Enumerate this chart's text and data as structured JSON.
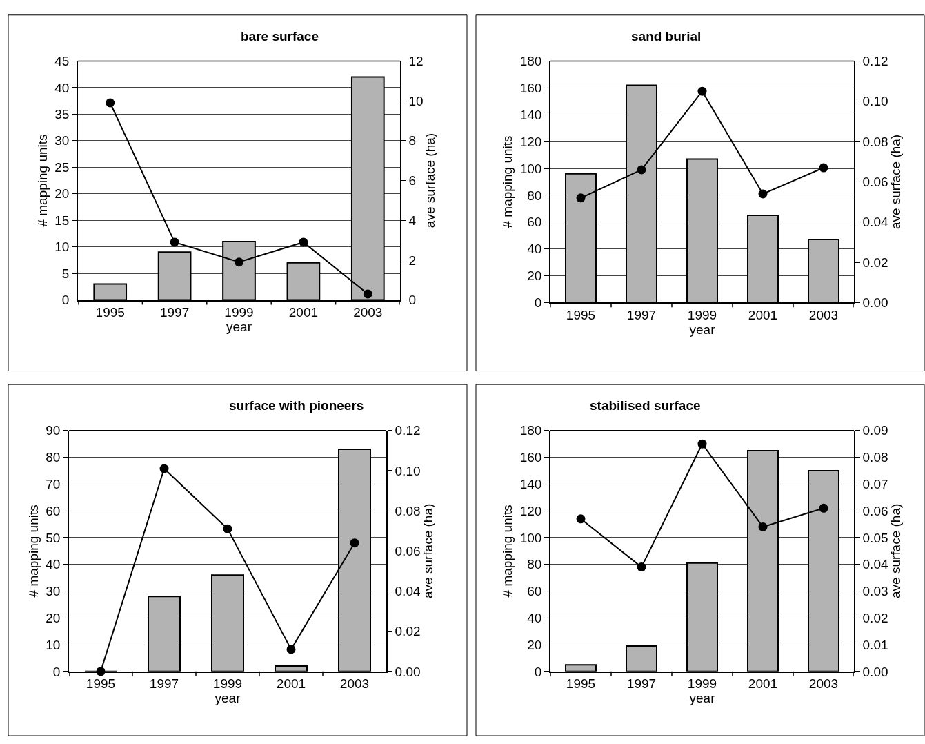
{
  "chart_data": [
    {
      "type": "bar",
      "title": "bare surface",
      "xlabel": "year",
      "ylabel": "# mapping units",
      "y2label": "ave surface (ha)",
      "categories": [
        "1995",
        "1997",
        "1999",
        "2001",
        "2003"
      ],
      "ylim": [
        0,
        45
      ],
      "yticks": [
        0,
        5,
        10,
        15,
        20,
        25,
        30,
        35,
        40,
        45
      ],
      "y2lim": [
        0,
        12
      ],
      "y2ticks": [
        0,
        2,
        4,
        6,
        8,
        10,
        12
      ],
      "grid": "y",
      "marker": "circle",
      "line_style": "solid",
      "series": [
        {
          "color": "#b3b3b3",
          "values": [
            3,
            9,
            11,
            7,
            42
          ]
        },
        {
          "type": "line",
          "axis": "y2",
          "color": "#000000",
          "values": [
            9.9,
            2.9,
            1.9,
            2.9,
            0.3
          ]
        }
      ]
    },
    {
      "type": "bar",
      "title": "sand burial",
      "xlabel": "year",
      "ylabel": "# mapping units",
      "y2label": "ave surface (ha)",
      "categories": [
        "1995",
        "1997",
        "1999",
        "2001",
        "2003"
      ],
      "ylim": [
        0,
        180
      ],
      "yticks": [
        0,
        20,
        40,
        60,
        80,
        100,
        120,
        140,
        160,
        180
      ],
      "y2lim": [
        0,
        0.12
      ],
      "y2ticks": [
        {
          "value": 0,
          "label": "0.00"
        },
        {
          "value": 0.02,
          "label": "0.02"
        },
        {
          "value": 0.04,
          "label": "0.04"
        },
        {
          "value": 0.06,
          "label": "0.06"
        },
        {
          "value": 0.08,
          "label": "0.08"
        },
        {
          "value": 0.1,
          "label": "0.10"
        },
        {
          "value": 0.12,
          "label": "0.12"
        }
      ],
      "grid": "y",
      "marker": "circle",
      "line_style": "solid",
      "series": [
        {
          "color": "#b3b3b3",
          "values": [
            96,
            162,
            107,
            65,
            47
          ]
        },
        {
          "type": "line",
          "axis": "y2",
          "color": "#000000",
          "values": [
            0.052,
            0.066,
            0.105,
            0.054,
            0.067
          ]
        }
      ]
    },
    {
      "type": "bar",
      "title": "surface with pioneers",
      "xlabel": "year",
      "ylabel": "# mapping units",
      "y2label": "ave surface (ha)",
      "categories": [
        "1995",
        "1997",
        "1999",
        "2001",
        "2003"
      ],
      "ylim": [
        0,
        90
      ],
      "yticks": [
        0,
        10,
        20,
        30,
        40,
        50,
        60,
        70,
        80,
        90
      ],
      "y2lim": [
        0,
        0.12
      ],
      "y2ticks": [
        {
          "value": 0,
          "label": "0.00"
        },
        {
          "value": 0.02,
          "label": "0.02"
        },
        {
          "value": 0.04,
          "label": "0.04"
        },
        {
          "value": 0.06,
          "label": "0.06"
        },
        {
          "value": 0.08,
          "label": "0.08"
        },
        {
          "value": 0.1,
          "label": "0.10"
        },
        {
          "value": 0.12,
          "label": "0.12"
        }
      ],
      "grid": "y",
      "marker": "circle",
      "line_style": "solid",
      "series": [
        {
          "color": "#b3b3b3",
          "values": [
            0,
            28,
            36,
            2,
            83
          ]
        },
        {
          "type": "line",
          "axis": "y2",
          "color": "#000000",
          "values": [
            0,
            0.101,
            0.071,
            0.011,
            0.064
          ]
        }
      ]
    },
    {
      "type": "bar",
      "title": "stabilised surface",
      "xlabel": "year",
      "ylabel": "# mapping units",
      "y2label": "ave surface (ha)",
      "categories": [
        "1995",
        "1997",
        "1999",
        "2001",
        "2003"
      ],
      "ylim": [
        0,
        180
      ],
      "yticks": [
        0,
        20,
        40,
        60,
        80,
        100,
        120,
        140,
        160,
        180
      ],
      "y2lim": [
        0,
        0.09
      ],
      "y2ticks": [
        {
          "value": 0,
          "label": "0.00"
        },
        {
          "value": 0.01,
          "label": "0.01"
        },
        {
          "value": 0.02,
          "label": "0.02"
        },
        {
          "value": 0.03,
          "label": "0.03"
        },
        {
          "value": 0.04,
          "label": "0.04"
        },
        {
          "value": 0.05,
          "label": "0.05"
        },
        {
          "value": 0.06,
          "label": "0.06"
        },
        {
          "value": 0.07,
          "label": "0.07"
        },
        {
          "value": 0.08,
          "label": "0.08"
        },
        {
          "value": 0.09,
          "label": "0.09"
        }
      ],
      "grid": "y",
      "marker": "circle",
      "line_style": "solid",
      "series": [
        {
          "color": "#b3b3b3",
          "values": [
            5,
            19,
            81,
            165,
            150
          ]
        },
        {
          "type": "line",
          "axis": "y2",
          "color": "#000000",
          "values": [
            0.057,
            0.039,
            0.085,
            0.054,
            0.061
          ]
        }
      ]
    }
  ]
}
